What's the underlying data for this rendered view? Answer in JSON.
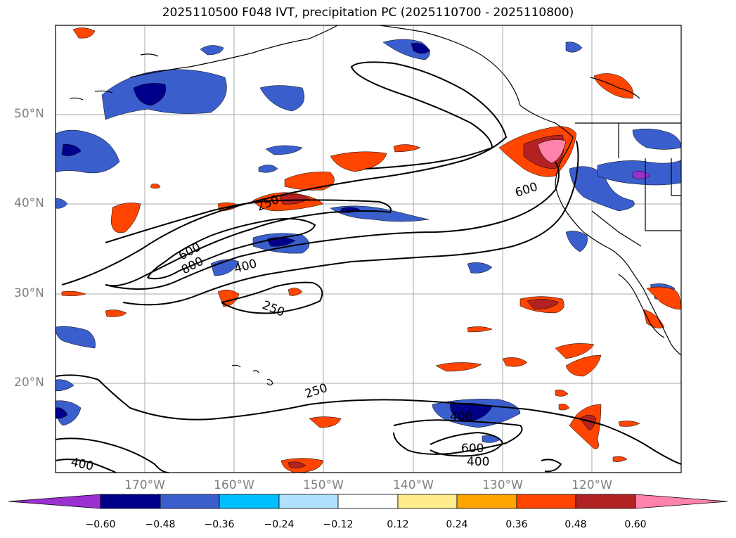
{
  "title": "2025110500 F048 IVT, precipitation PC (2025110700 - 2025110800)",
  "map": {
    "lat_labels": [
      "50°N",
      "40°N",
      "30°N",
      "20°N"
    ],
    "lon_labels": [
      "170°W",
      "160°W",
      "150°W",
      "140°W",
      "130°W",
      "120°W"
    ],
    "contour_labels": [
      "250",
      "600",
      "800",
      "400",
      "250",
      "250",
      "400",
      "600",
      "400",
      "600",
      "400"
    ]
  },
  "colorbar": {
    "ticks": [
      "−0.60",
      "−0.48",
      "−0.36",
      "−0.24",
      "−0.12",
      "0.12",
      "0.24",
      "0.36",
      "0.48",
      "0.60"
    ],
    "colors": [
      "#9b30d0",
      "#00008b",
      "#3a5fcd",
      "#00bfff",
      "#b0e2ff",
      "#ffffff",
      "#ffec8b",
      "#ffa500",
      "#ff4500",
      "#b22222",
      "#ff82ab"
    ]
  },
  "colors": {
    "land_outline": "#000000",
    "grid": "#a9a9a9",
    "contour": "#000000"
  }
}
